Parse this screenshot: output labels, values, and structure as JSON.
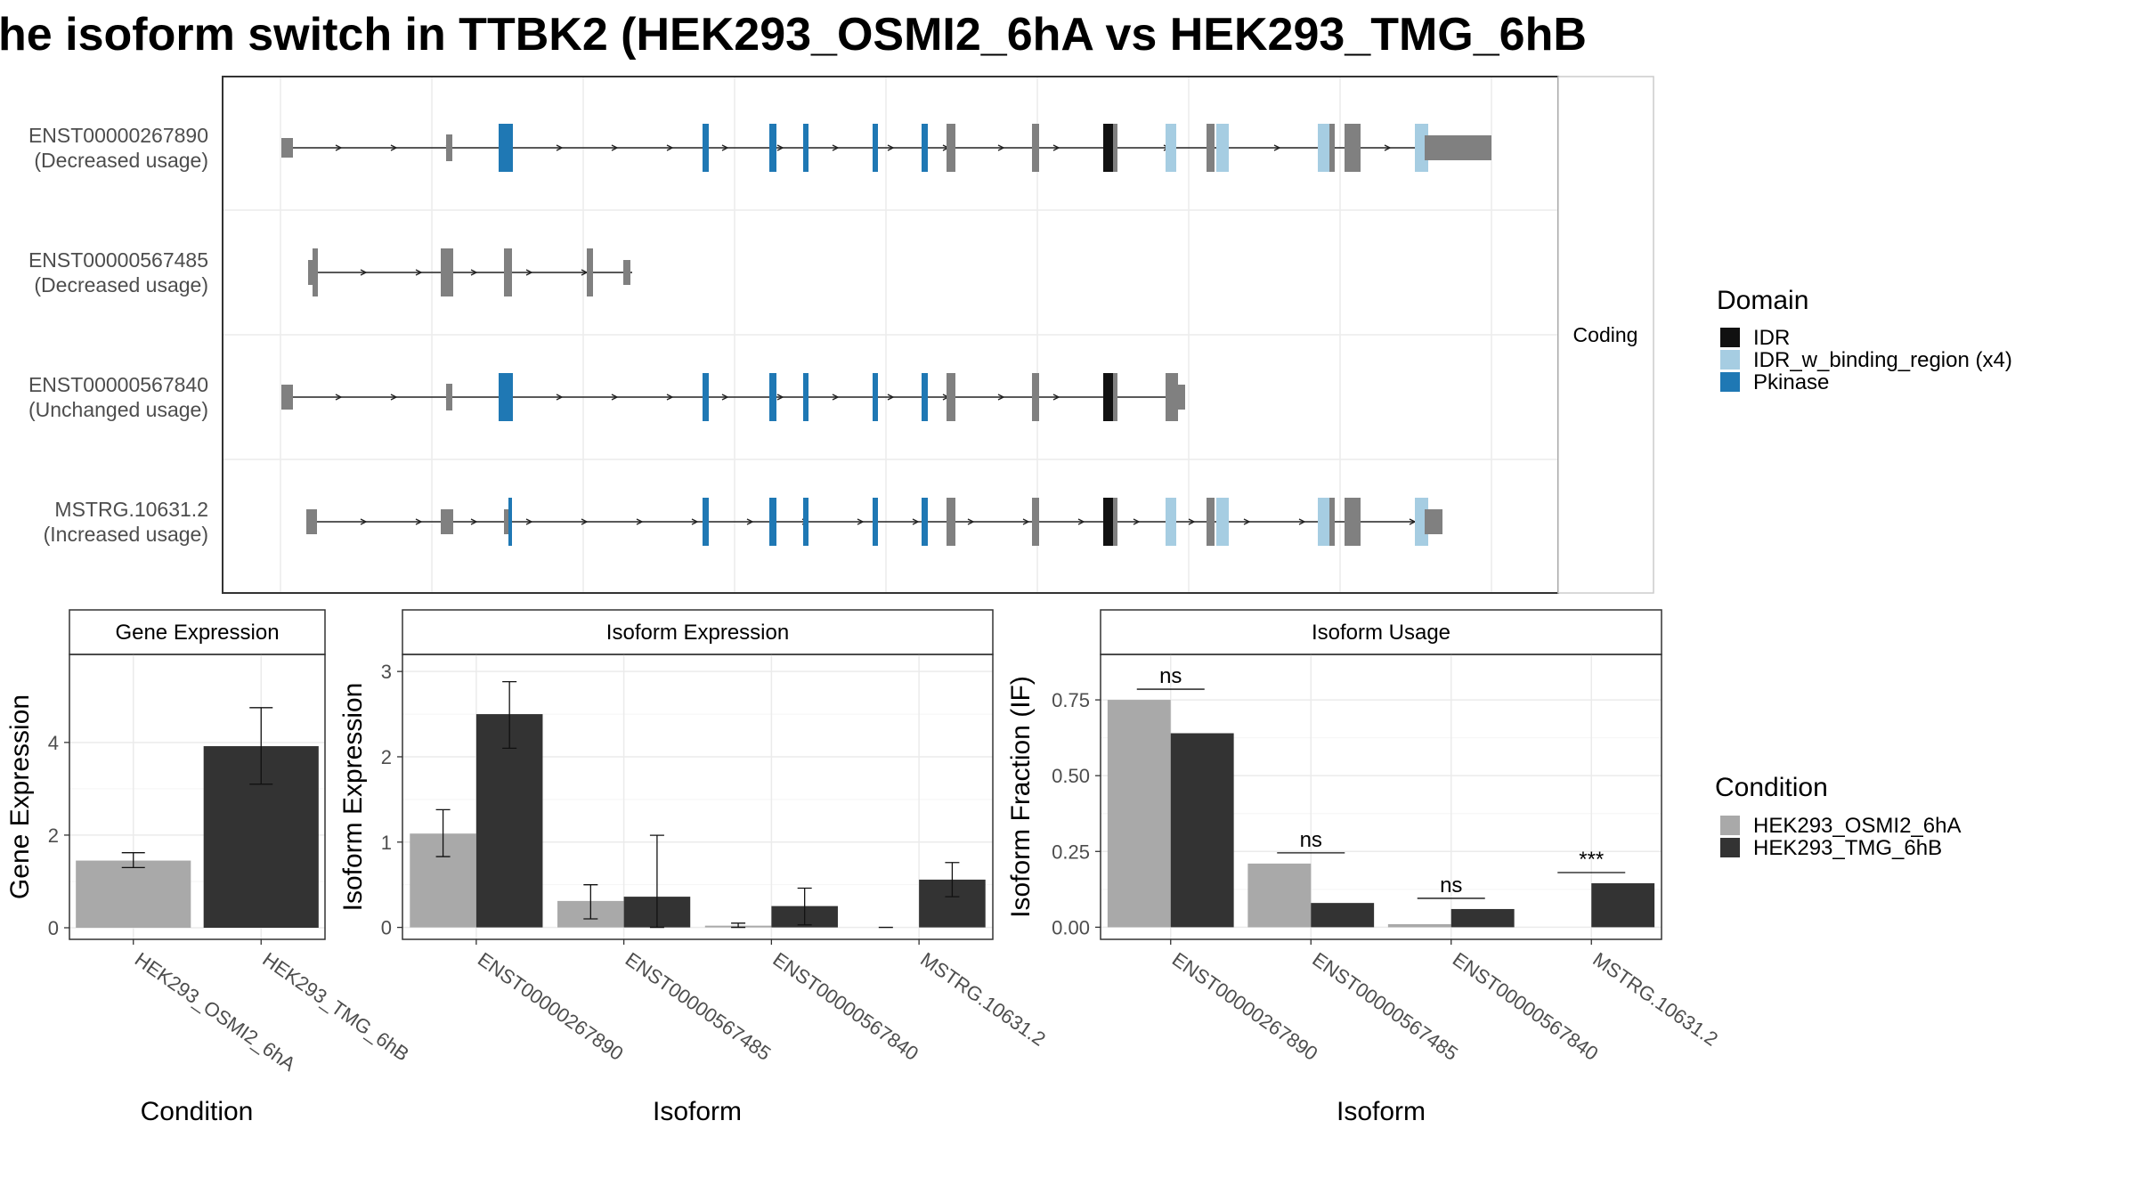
{
  "title": "he isoform switch in TTBK2 (HEK293_OSMI2_6hA vs HEK293_TMG_6hB",
  "colors": {
    "IDR": "#111111",
    "IDR_w_binding_region (x4)": "#a6cde2",
    "Pkinase": "#1f78b4",
    "noncoding_domain": "#808080",
    "HEK293_OSMI2_6hA": "#a9a9a9",
    "HEK293_TMG_6hB": "#333333"
  },
  "transcript_panel": {
    "strip_label": "Coding",
    "transcripts": [
      {
        "id": "ENST00000267890",
        "usage": "(Decreased usage)"
      },
      {
        "id": "ENST00000567485",
        "usage": "(Decreased usage)"
      },
      {
        "id": "ENST00000567840",
        "usage": "(Unchanged usage)"
      },
      {
        "id": "MSTRG.10631.2",
        "usage": "(Increased usage)"
      }
    ]
  },
  "legends": {
    "domain": {
      "title": "Domain",
      "entries": [
        "IDR",
        "IDR_w_binding_region (x4)",
        "Pkinase"
      ]
    },
    "condition": {
      "title": "Condition",
      "entries": [
        "HEK293_OSMI2_6hA",
        "HEK293_TMG_6hB"
      ]
    }
  },
  "chart_data": [
    {
      "type": "bar",
      "title": "Gene Expression",
      "xlabel": "Condition",
      "ylabel": "Gene Expression",
      "categories": [
        "HEK293_OSMI2_6hA",
        "HEK293_TMG_6hB"
      ],
      "values": [
        1.45,
        3.92
      ],
      "error_low": [
        1.3,
        3.1
      ],
      "error_high": [
        1.62,
        4.75
      ],
      "ylim": [
        -0.25,
        5.9
      ],
      "yticks": [
        0,
        2,
        4
      ],
      "grid": true
    },
    {
      "type": "bar",
      "title": "Isoform Expression",
      "xlabel": "Isoform",
      "ylabel": "Isoform Expression",
      "categories": [
        "ENST00000267890",
        "ENST00000567485",
        "ENST00000567840",
        "MSTRG.10631.2"
      ],
      "series": [
        {
          "name": "HEK293_OSMI2_6hA",
          "values": [
            1.1,
            0.31,
            0.02,
            0.0
          ],
          "error_low": [
            0.83,
            0.1,
            0.0,
            0.0
          ],
          "error_high": [
            1.38,
            0.5,
            0.05,
            0.0
          ]
        },
        {
          "name": "HEK293_TMG_6hB",
          "values": [
            2.5,
            0.36,
            0.25,
            0.56
          ],
          "error_low": [
            2.1,
            0.0,
            0.03,
            0.36
          ],
          "error_high": [
            2.88,
            1.08,
            0.46,
            0.76
          ]
        }
      ],
      "ylim": [
        -0.14,
        3.2
      ],
      "yticks": [
        0,
        1,
        2,
        3
      ],
      "grid": true
    },
    {
      "type": "bar",
      "title": "Isoform Usage",
      "xlabel": "Isoform",
      "ylabel": "Isoform Fraction (IF)",
      "categories": [
        "ENST00000267890",
        "ENST00000567485",
        "ENST00000567840",
        "MSTRG.10631.2"
      ],
      "series": [
        {
          "name": "HEK293_OSMI2_6hA",
          "values": [
            0.75,
            0.21,
            0.01,
            0.0
          ]
        },
        {
          "name": "HEK293_TMG_6hB",
          "values": [
            0.64,
            0.08,
            0.06,
            0.145
          ]
        }
      ],
      "significance": [
        "ns",
        "ns",
        "ns",
        "***"
      ],
      "ylim": [
        -0.04,
        0.9
      ],
      "yticks": [
        0.0,
        0.25,
        0.5,
        0.75
      ],
      "ytick_labels": [
        "0.00",
        "0.25",
        "0.50",
        "0.75"
      ],
      "grid": true
    }
  ]
}
